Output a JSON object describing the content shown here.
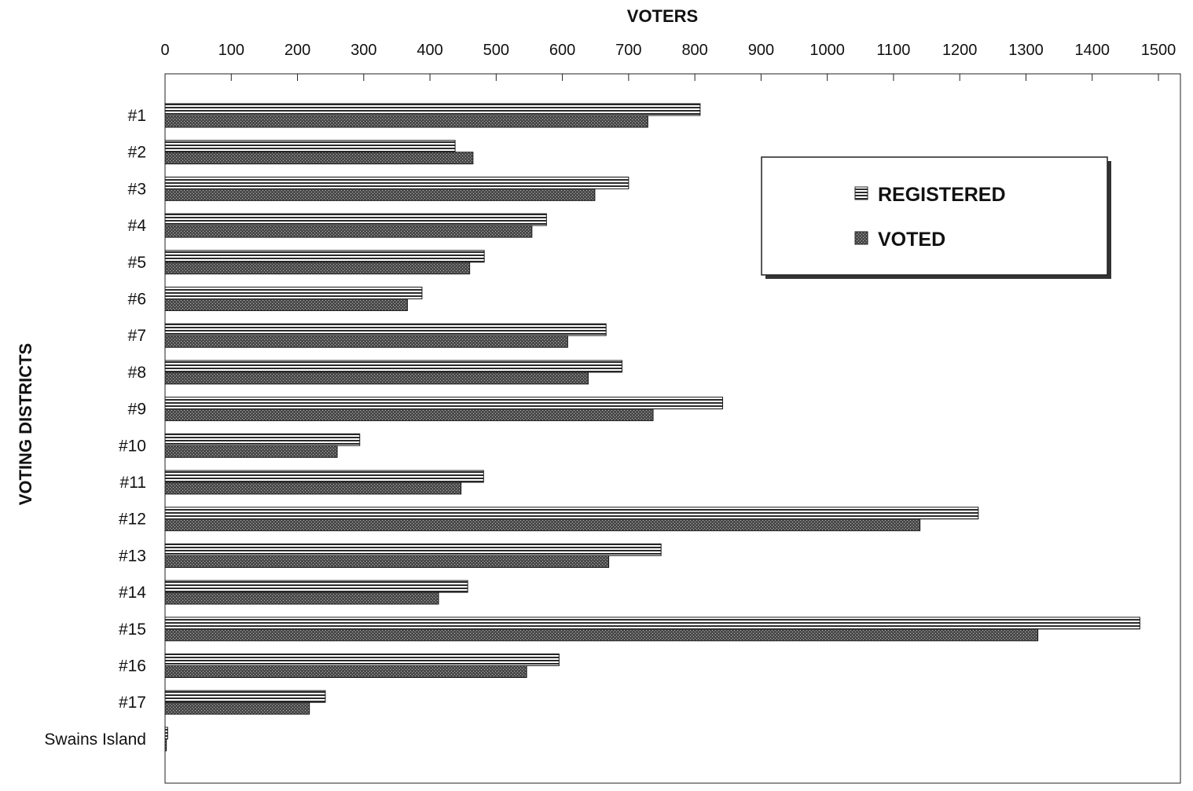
{
  "chart_data": {
    "type": "bar",
    "orientation": "horizontal",
    "title": "",
    "xlabel": "VOTERS",
    "ylabel": "VOTING DISTRICTS",
    "xlim": [
      0,
      1500
    ],
    "x_ticks": [
      "0",
      "100",
      "200",
      "300",
      "400",
      "500",
      "600",
      "700",
      "800",
      "900",
      "1000",
      "1100",
      "1200",
      "1300",
      "1400",
      "1500"
    ],
    "x_tick_values": [
      0,
      100,
      200,
      300,
      400,
      500,
      600,
      700,
      800,
      900,
      1000,
      1100,
      1200,
      1300,
      1400,
      1500
    ],
    "x_axis_position": "top",
    "grid": false,
    "legend_position": "top-right",
    "categories": [
      "#1",
      "#2",
      "#3",
      "#4",
      "#5",
      "#6",
      "#7",
      "#8",
      "#9",
      "#10",
      "#11",
      "#12",
      "#13",
      "#14",
      "#15",
      "#16",
      "#17",
      "Swains Island"
    ],
    "series": [
      {
        "name": "REGISTERED",
        "pattern": "horizontal-stripes",
        "color": "#333333",
        "values": [
          808,
          438,
          700,
          576,
          482,
          388,
          666,
          690,
          842,
          294,
          481,
          1228,
          749,
          457,
          1472,
          595,
          242,
          4
        ]
      },
      {
        "name": "VOTED",
        "pattern": "stipple",
        "color": "#3a3a3a",
        "values": [
          729,
          465,
          649,
          554,
          460,
          366,
          608,
          639,
          737,
          260,
          447,
          1140,
          670,
          413,
          1318,
          546,
          218,
          2
        ]
      }
    ]
  }
}
